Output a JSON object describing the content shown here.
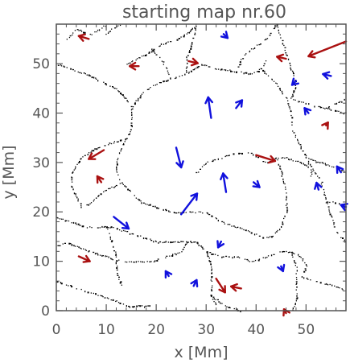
{
  "chart_data": {
    "type": "scatter",
    "title": "starting map nr.60",
    "xlabel": "x [Mm]",
    "ylabel": "y [Mm]",
    "xlim": [
      0,
      58
    ],
    "ylim": [
      0,
      58
    ],
    "xticks": [
      "0",
      "10",
      "20",
      "30",
      "40",
      "50"
    ],
    "yticks": [
      "0",
      "10",
      "20",
      "30",
      "40",
      "50"
    ],
    "grid": false,
    "colors": {
      "axis": "#555555",
      "lanes": "#000000",
      "red_arrows": "#aa1111",
      "blue_arrows": "#1111dd"
    },
    "lanes": [
      [
        [
          2,
          55
        ],
        [
          4,
          57
        ],
        [
          7,
          56
        ],
        [
          10,
          58
        ]
      ],
      [
        [
          10,
          56
        ],
        [
          11,
          57
        ],
        [
          13,
          58
        ]
      ],
      [
        [
          0,
          50
        ],
        [
          3,
          49
        ],
        [
          7,
          47.5
        ],
        [
          10,
          46
        ],
        [
          12,
          45
        ],
        [
          14,
          43
        ],
        [
          15,
          41
        ]
      ],
      [
        [
          15,
          41
        ],
        [
          15,
          37
        ],
        [
          14,
          35
        ],
        [
          13,
          33
        ],
        [
          12,
          30
        ],
        [
          12,
          28
        ],
        [
          13,
          26
        ],
        [
          15,
          24
        ],
        [
          17,
          22
        ],
        [
          20,
          21
        ],
        [
          23,
          20
        ]
      ],
      [
        [
          15,
          41
        ],
        [
          17,
          44
        ],
        [
          20,
          46
        ],
        [
          23,
          47
        ],
        [
          26,
          48
        ],
        [
          29,
          50
        ]
      ],
      [
        [
          14,
          50
        ],
        [
          18,
          52
        ],
        [
          21,
          54
        ],
        [
          24,
          55
        ],
        [
          26,
          56
        ],
        [
          28,
          58
        ]
      ],
      [
        [
          26,
          48
        ],
        [
          26,
          51
        ],
        [
          27,
          54
        ],
        [
          28,
          58
        ]
      ],
      [
        [
          19,
          53
        ],
        [
          21,
          51
        ],
        [
          22,
          49
        ],
        [
          23,
          47
        ]
      ],
      [
        [
          29,
          50
        ],
        [
          32,
          49
        ],
        [
          36,
          48.5
        ],
        [
          39,
          48
        ],
        [
          41,
          49
        ],
        [
          42,
          51
        ]
      ],
      [
        [
          36,
          48.5
        ],
        [
          37,
          51
        ],
        [
          39,
          53
        ],
        [
          42,
          55
        ],
        [
          44,
          58
        ]
      ],
      [
        [
          41,
          49
        ],
        [
          44,
          46
        ],
        [
          46,
          43
        ],
        [
          47,
          40
        ],
        [
          47,
          37
        ],
        [
          49,
          33
        ],
        [
          50,
          31
        ],
        [
          51,
          29
        ],
        [
          51,
          27
        ]
      ],
      [
        [
          44,
          58
        ],
        [
          45,
          55
        ],
        [
          46,
          52
        ],
        [
          47,
          49
        ],
        [
          48,
          46
        ],
        [
          47,
          43
        ]
      ],
      [
        [
          47,
          43
        ],
        [
          50,
          42
        ],
        [
          54,
          41
        ],
        [
          58,
          40
        ]
      ],
      [
        [
          50,
          31
        ],
        [
          53,
          30
        ],
        [
          56,
          29
        ],
        [
          58,
          28
        ]
      ],
      [
        [
          51,
          29
        ],
        [
          53,
          26
        ],
        [
          54,
          22
        ],
        [
          55,
          19
        ],
        [
          56,
          16
        ],
        [
          58,
          14
        ]
      ],
      [
        [
          42,
          30
        ],
        [
          44,
          31
        ],
        [
          46,
          31
        ],
        [
          49,
          30
        ],
        [
          51,
          29
        ]
      ],
      [
        [
          44,
          31
        ],
        [
          45,
          28
        ],
        [
          46,
          24
        ],
        [
          46,
          20
        ],
        [
          45,
          17
        ],
        [
          43,
          15
        ],
        [
          41,
          15
        ]
      ],
      [
        [
          23,
          20
        ],
        [
          27,
          20
        ],
        [
          30,
          20
        ],
        [
          33,
          18
        ],
        [
          36,
          17
        ],
        [
          39,
          16
        ],
        [
          41,
          15
        ]
      ],
      [
        [
          28,
          28
        ],
        [
          30,
          30
        ],
        [
          33,
          31
        ],
        [
          36,
          32
        ],
        [
          39,
          32
        ],
        [
          42,
          30
        ]
      ],
      [
        [
          13,
          26
        ],
        [
          11,
          25
        ],
        [
          9,
          24
        ],
        [
          7,
          22
        ],
        [
          5,
          21
        ],
        [
          4,
          23
        ],
        [
          3,
          25
        ],
        [
          3,
          28
        ],
        [
          5,
          31
        ],
        [
          8,
          33
        ],
        [
          11,
          34
        ],
        [
          14,
          35
        ]
      ],
      [
        [
          0,
          19
        ],
        [
          3,
          18
        ],
        [
          6,
          17
        ],
        [
          9,
          17
        ],
        [
          11,
          17
        ],
        [
          14,
          16
        ],
        [
          17,
          15
        ],
        [
          20,
          14
        ],
        [
          23,
          14
        ],
        [
          26,
          14
        ]
      ],
      [
        [
          26,
          14
        ],
        [
          28,
          14
        ],
        [
          30,
          12
        ],
        [
          33,
          11
        ],
        [
          36,
          11
        ],
        [
          39,
          10
        ],
        [
          42,
          11
        ],
        [
          45,
          12
        ],
        [
          47,
          12
        ],
        [
          49,
          11
        ],
        [
          50,
          9
        ],
        [
          49,
          7
        ]
      ],
      [
        [
          26,
          14
        ],
        [
          25,
          12
        ],
        [
          22,
          11
        ],
        [
          19,
          10
        ],
        [
          16,
          10
        ],
        [
          13,
          10
        ],
        [
          10,
          11
        ],
        [
          7,
          12
        ],
        [
          4,
          13
        ],
        [
          2,
          14
        ],
        [
          0,
          13
        ]
      ],
      [
        [
          30,
          12
        ],
        [
          31,
          9
        ],
        [
          31,
          6
        ],
        [
          31,
          3
        ],
        [
          32,
          1
        ]
      ],
      [
        [
          31,
          3
        ],
        [
          34,
          1
        ],
        [
          37,
          0
        ]
      ],
      [
        [
          0,
          6
        ],
        [
          3,
          5
        ],
        [
          6,
          4
        ],
        [
          9,
          3
        ],
        [
          12,
          2
        ],
        [
          14,
          1
        ],
        [
          16,
          1
        ],
        [
          19,
          1
        ]
      ],
      [
        [
          47,
          12
        ],
        [
          48,
          9
        ],
        [
          48,
          5
        ],
        [
          48,
          2
        ],
        [
          47,
          0
        ]
      ],
      [
        [
          49,
          7
        ],
        [
          52,
          6
        ],
        [
          56,
          5
        ],
        [
          58,
          4
        ]
      ],
      [
        [
          10,
          17
        ],
        [
          11,
          14
        ],
        [
          12,
          11
        ],
        [
          12,
          8
        ],
        [
          13,
          5
        ]
      ],
      [
        [
          54,
          41
        ],
        [
          56,
          42
        ],
        [
          58,
          43
        ]
      ],
      [
        [
          54,
          22
        ],
        [
          56,
          22
        ],
        [
          58,
          21
        ]
      ]
    ],
    "red_arrows": [
      {
        "x": 6.5,
        "y": 55,
        "dx": -2.0,
        "dy": 0.6
      },
      {
        "x": 26.5,
        "y": 50.5,
        "dx": 1.8,
        "dy": -0.4
      },
      {
        "x": 16.5,
        "y": 49.5,
        "dx": -1.8,
        "dy": 0
      },
      {
        "x": 46,
        "y": 51,
        "dx": -1.8,
        "dy": 0.4
      },
      {
        "x": 58,
        "y": 54.5,
        "dx": -7.5,
        "dy": -3.0
      },
      {
        "x": 54,
        "y": 37.5,
        "dx": 0.4,
        "dy": 0.6
      },
      {
        "x": 40,
        "y": 31.5,
        "dx": 3.8,
        "dy": -1.2
      },
      {
        "x": 9.5,
        "y": 32.5,
        "dx": -3.0,
        "dy": -1.8
      },
      {
        "x": 9,
        "y": 26,
        "dx": -0.8,
        "dy": 1.2
      },
      {
        "x": 4.5,
        "y": 11,
        "dx": 2.2,
        "dy": -1.0
      },
      {
        "x": 32,
        "y": 6.5,
        "dx": 1.8,
        "dy": -2.8
      },
      {
        "x": 37,
        "y": 4.5,
        "dx": -2.0,
        "dy": 0.4
      },
      {
        "x": 46,
        "y": -0.5,
        "dx": -0.4,
        "dy": 0.8
      }
    ],
    "blue_arrows": [
      {
        "x": 33.5,
        "y": 56,
        "dx": 0.8,
        "dy": -0.8
      },
      {
        "x": 48,
        "y": 46.5,
        "dx": -0.8,
        "dy": -0.8
      },
      {
        "x": 55,
        "y": 47.5,
        "dx": -1.6,
        "dy": 0.4
      },
      {
        "x": 31,
        "y": 39,
        "dx": -0.6,
        "dy": 4.2
      },
      {
        "x": 36,
        "y": 41,
        "dx": 1.2,
        "dy": 1.6
      },
      {
        "x": 50.5,
        "y": 40,
        "dx": -0.8,
        "dy": 1.0
      },
      {
        "x": 24,
        "y": 33,
        "dx": 1.0,
        "dy": -4.0
      },
      {
        "x": 57,
        "y": 28,
        "dx": -0.8,
        "dy": 1.2
      },
      {
        "x": 25,
        "y": 19.5,
        "dx": 3.2,
        "dy": 4.2
      },
      {
        "x": 34,
        "y": 24,
        "dx": -0.6,
        "dy": 3.8
      },
      {
        "x": 39.5,
        "y": 26,
        "dx": 1.2,
        "dy": -1.0
      },
      {
        "x": 52.5,
        "y": 24.5,
        "dx": -0.4,
        "dy": 1.4
      },
      {
        "x": 58,
        "y": 21,
        "dx": -1.0,
        "dy": 0.4
      },
      {
        "x": 11.5,
        "y": 19,
        "dx": 3.0,
        "dy": -2.4
      },
      {
        "x": 45,
        "y": 9,
        "dx": 0.4,
        "dy": -1.0
      },
      {
        "x": 33,
        "y": 14,
        "dx": -0.6,
        "dy": -1.2
      },
      {
        "x": 22.5,
        "y": 7,
        "dx": -0.6,
        "dy": 1.0
      },
      {
        "x": 27.5,
        "y": 5,
        "dx": 0.6,
        "dy": 1.2
      }
    ]
  }
}
